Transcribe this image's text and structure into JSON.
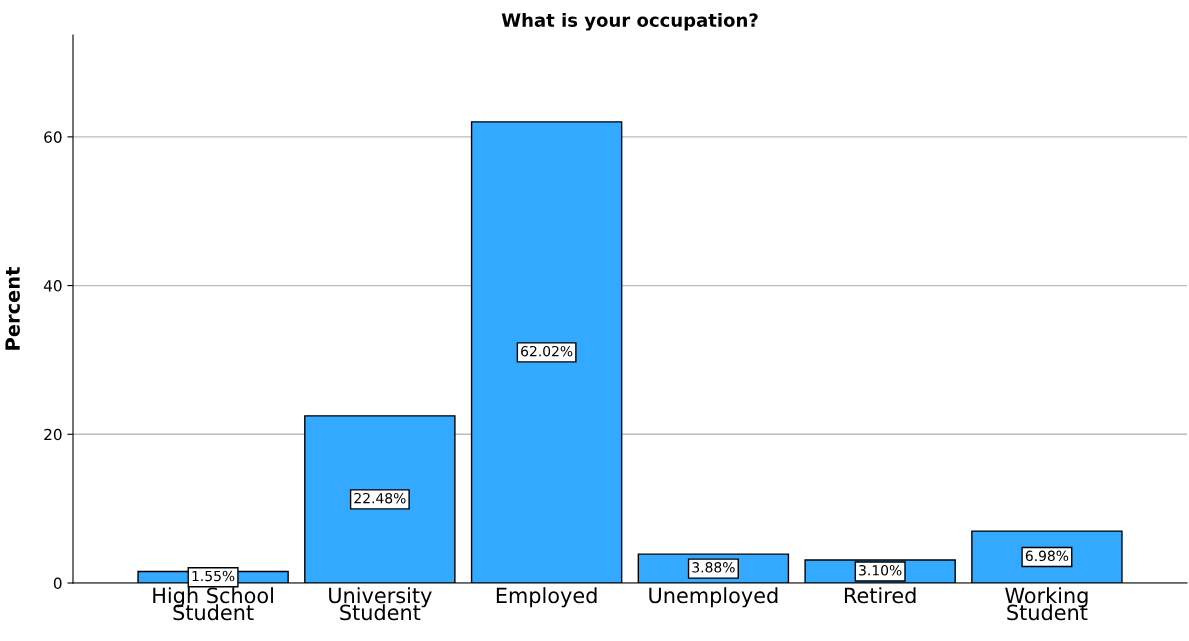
{
  "chart_data": {
    "type": "bar",
    "title": "What is your occupation?",
    "ylabel": "Percent",
    "categories": [
      "High School Student",
      "University Student",
      "Employed",
      "Unemployed",
      "Retired",
      "Working Student"
    ],
    "values": [
      1.55,
      22.48,
      62.02,
      3.88,
      3.1,
      6.98
    ],
    "value_labels": [
      "1.55%",
      "22.48%",
      "62.02%",
      "3.88%",
      "3.10%",
      "6.98%"
    ],
    "color": "#33aaff",
    "ylim": [
      0,
      73.7
    ],
    "yticks": [
      0,
      20,
      40,
      60
    ],
    "grid": "y",
    "legend": false
  }
}
